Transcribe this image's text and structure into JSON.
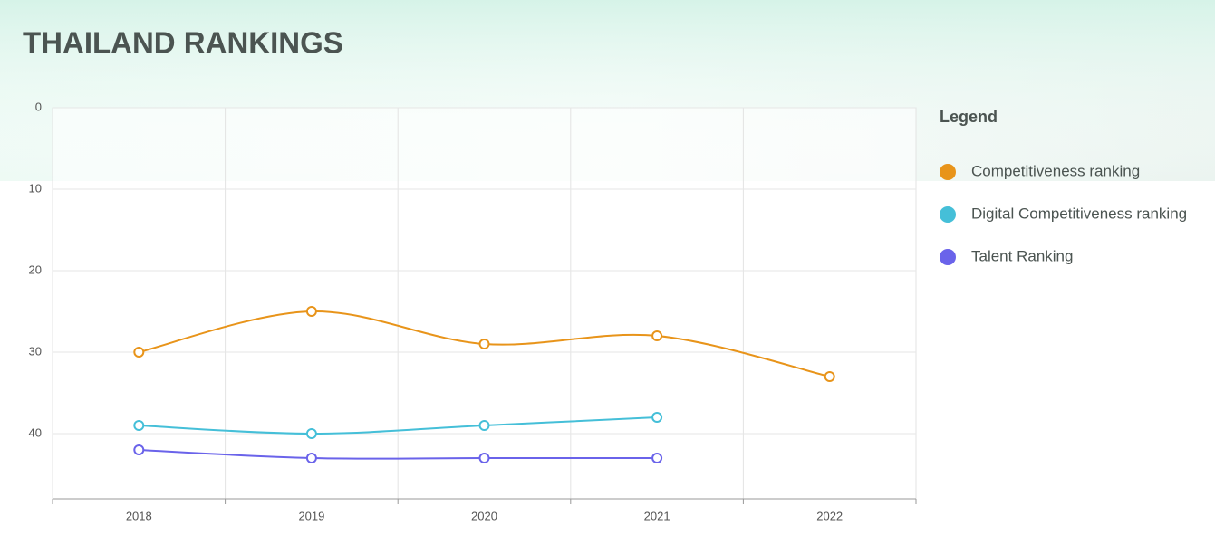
{
  "chart_data": {
    "type": "line",
    "title": "THAILAND RANKINGS",
    "legend_title": "Legend",
    "categories": [
      "2018",
      "2019",
      "2020",
      "2021",
      "2022"
    ],
    "series": [
      {
        "name": "Competitiveness ranking",
        "color": "#e8941a",
        "values": [
          30,
          25,
          29,
          28,
          33
        ]
      },
      {
        "name": "Digital Competitiveness ranking",
        "color": "#45bfd8",
        "values": [
          39,
          40,
          39,
          38,
          null
        ]
      },
      {
        "name": "Talent Ranking",
        "color": "#6a63ea",
        "values": [
          42,
          43,
          43,
          43,
          null
        ]
      }
    ],
    "ylim": [
      0,
      48
    ],
    "yticks": [
      0,
      10,
      20,
      30,
      40
    ],
    "y_inverted": true,
    "grid": true,
    "legend": "right"
  }
}
